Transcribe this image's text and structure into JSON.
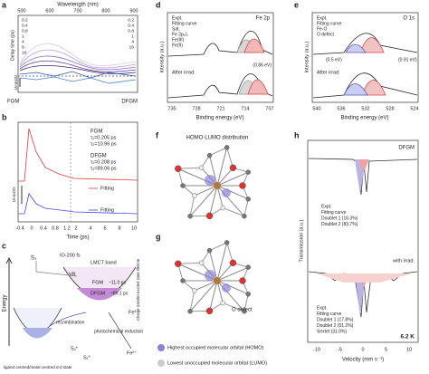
{
  "panels": {
    "a": {
      "label": "a",
      "top_axis_title": "Wavelength (nm)",
      "top_ticks": [
        "500",
        "600",
        "700",
        "800",
        "900"
      ],
      "y_axis_title": "Delay time (ps)",
      "legend_left": [
        "0.2",
        "0.4",
        "0.8",
        "1",
        "4",
        "8",
        "16"
      ],
      "legend_right": [
        "0.2",
        "0.4",
        "0.8",
        "1",
        "4",
        "16"
      ],
      "sample_left": "FGM",
      "sample_right": "DFGM",
      "scale_bar": "10 mOD"
    },
    "b": {
      "label": "b",
      "fgm_name": "FGM",
      "fgm_tau1": "τ₁=0.205 ps",
      "fgm_tau2": "τ₂=10.96 ps",
      "dfgm_name": "DFGM",
      "dfgm_tau1": "τ₁=0.208 ps",
      "dfgm_tau2": "τ₂=89.06 ps",
      "fit_red": "Fitting",
      "fit_blue": "Fitting",
      "scale_bar": "10 mOD",
      "x_ticks": [
        "-0.4",
        "0",
        "0.4",
        "0.8",
        "1.2",
        "2",
        "4",
        "6",
        "8",
        "10"
      ],
      "x_axis_title": "Time (ps)"
    },
    "c": {
      "label": "c",
      "energy": "Energy",
      "s3": "S₃",
      "io": "IO-200 fs",
      "lmct": "LMCT band",
      "vr": "VR",
      "fgm": "FGM",
      "fgm_time": "~11.0 ps",
      "dfgm": "DFGM",
      "dfgm_time": "~89.1 ps",
      "lifetime": "Charge transfer excited state lifetime",
      "recombination": "recombination",
      "reduction": "photochemical reduction",
      "fe3": "Fe³⁺",
      "fe2": "Fe²⁺",
      "s2": "S₂*",
      "s1": "S₁*",
      "dd_state": "ligand centred/metal centred d-d state"
    },
    "d": {
      "label": "d",
      "title": "Fe 2p",
      "legend": [
        "Expt.",
        "Fitting curve",
        "Sat.",
        "Fe 2p₁/₂",
        "Fe(III)",
        "Fe(II)"
      ],
      "shift": "(0.86 eV)",
      "after": "After irrad.",
      "x_ticks": [
        "735",
        "728",
        "721",
        "714",
        "707"
      ],
      "x_axis_title": "Binding energy (eV)",
      "y_axis_title": "Intensity (a.u.)"
    },
    "e": {
      "label": "e",
      "title": "O 1s",
      "legend": [
        "Expt.",
        "Fitting curve",
        "Fe-O",
        "O defect"
      ],
      "shift_left": "(0.5 eV)",
      "shift_right": "(0.91 eV)",
      "after": "After irrad.",
      "x_ticks": [
        "540",
        "536",
        "532",
        "528",
        "524"
      ],
      "x_axis_title": "Binding energy (eV)",
      "y_axis_title": "Intensity (a.u.)"
    },
    "f": {
      "label": "f",
      "title": "HOMO-LUMO distribution"
    },
    "g": {
      "label": "g",
      "defect": "O defect",
      "homo": "Highest occupied molecular orbital (HOMO)",
      "lumo": "Lowest unoccupied molecular orbital (LUMO)"
    },
    "h": {
      "label": "h",
      "sample": "DFGM",
      "legend_top": [
        "Expt.",
        "Fitting curve",
        "Doublet 1 (16.3%)",
        "Doublet 2 (83.7%)"
      ],
      "irrad": "with irrad.",
      "legend_bottom": [
        "Expt.",
        "Fitting curve",
        "Doublet 1 (17.8%)",
        "Doublet 2 (51.2%)",
        "Sextet (31.0%)"
      ],
      "temperature": "6.2 K",
      "x_ticks": [
        "-10",
        "-5",
        "0",
        "5",
        "10"
      ],
      "x_axis_title": "Velocity (mm s⁻¹)",
      "y_axis_title": "Transmission (a.u.)"
    }
  }
}
